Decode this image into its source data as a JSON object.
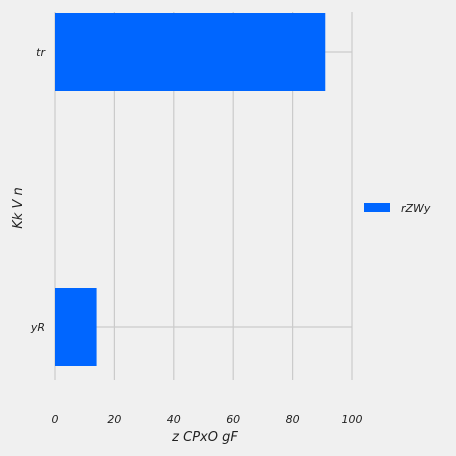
{
  "chart_data": {
    "type": "bar",
    "orientation": "horizontal",
    "categories": [
      "yR",
      "tr"
    ],
    "series": [
      {
        "name": "rZWy",
        "values": [
          14,
          91
        ]
      }
    ],
    "xlabel": "z CPxO gF",
    "ylabel": "Kk V n",
    "xlim": [
      0,
      100
    ],
    "xticks": [
      0,
      20,
      40,
      60,
      80,
      100
    ],
    "grid": true,
    "legend": "right",
    "colors": {
      "bar": "#0066ff",
      "background": "#f0f0f0",
      "grid": "#cbcbcb"
    }
  }
}
